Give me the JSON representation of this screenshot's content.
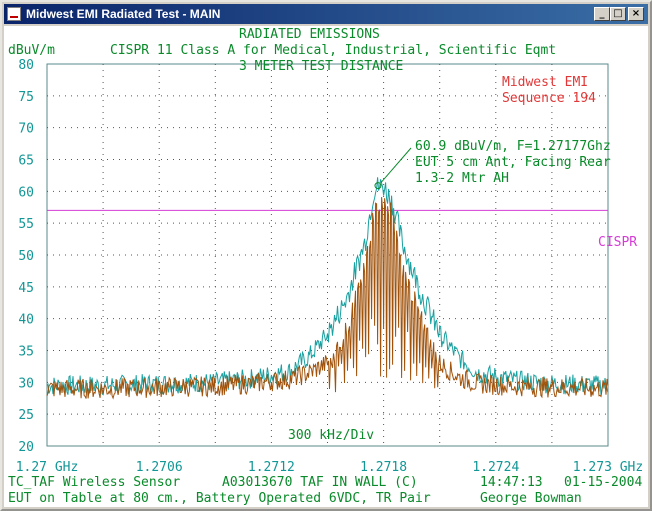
{
  "window": {
    "title": "Midwest EMI Radiated Test - MAIN",
    "buttons": {
      "minimize": "_",
      "maximize": "□",
      "close": "×"
    }
  },
  "header": {
    "line1": "RADIATED EMISSIONS",
    "line2": "CISPR 11 Class A for Medical, Industrial, Scientific Eqmt",
    "line3": "3 METER TEST DISTANCE"
  },
  "company": {
    "name": "Midwest EMI",
    "sequence": "Sequence 194"
  },
  "annotation": {
    "line1": "60.9 dBuV/m, F=1.27177Ghz",
    "line2": "EUT 5 cm Ant, Facing Rear",
    "line3": "1.3-2 Mtr AH"
  },
  "scale_label": "300 kHz/Div",
  "limit_label": "CISPR",
  "footer": {
    "sensor": "TC_TAF Wireless Sensor",
    "test_id": "A03013670 TAF IN WALL (C)",
    "time": "14:47:13",
    "date": "01-15-2004",
    "setup": "EUT on Table at 80 cm., Battery Operated 6VDC, TR Pair",
    "operator": "George Bowman"
  },
  "colors": {
    "title_bar": "#0a246a",
    "text_green": "#0a8a2a",
    "axis_teal": "#139696",
    "company_red": "#e03838",
    "limit_magenta": "#d43cd4",
    "trace_brown": "#a0520a",
    "trace_cyan": "#1aa0a0"
  },
  "chart_data": {
    "type": "line",
    "title": "RADIATED EMISSIONS",
    "ylabel": "dBuV/m",
    "ylim": [
      20,
      80
    ],
    "y_ticks": [
      "20",
      "25",
      "30",
      "35",
      "40",
      "45",
      "50",
      "55",
      "60",
      "65",
      "70",
      "75",
      "80"
    ],
    "xlim": [
      1.27,
      1.273
    ],
    "x_tick_labels": [
      "1.27 GHz",
      "1.2706",
      "1.2712",
      "1.2718",
      "1.2724",
      "1.273 GHz"
    ],
    "x_unit": "GHz",
    "grid": true,
    "limit_line": {
      "name": "CISPR",
      "value": 57
    },
    "marker": {
      "x": 1.27177,
      "y": 60.9
    },
    "series": [
      {
        "color": "#1aa0a0",
        "x": [
          1.27,
          1.2703,
          1.2706,
          1.2709,
          1.2711,
          1.2713,
          1.2714,
          1.2715,
          1.2716,
          1.2717,
          1.27175,
          1.2718,
          1.27185,
          1.2719,
          1.272,
          1.2721,
          1.2722,
          1.2723,
          1.2725,
          1.2727,
          1.273
        ],
        "y": [
          29.5,
          29.5,
          29.8,
          30.0,
          30.6,
          31.8,
          34.0,
          37.5,
          43.0,
          52.0,
          60.5,
          60.9,
          58.0,
          52.0,
          44.0,
          37.5,
          34.0,
          31.5,
          30.3,
          29.8,
          29.5
        ]
      },
      {
        "color": "#a0520a",
        "x": [
          1.27,
          1.2703,
          1.2706,
          1.2709,
          1.2711,
          1.2713,
          1.2714,
          1.2715,
          1.2716,
          1.2717,
          1.27175,
          1.2718,
          1.27185,
          1.2719,
          1.272,
          1.2721,
          1.2722,
          1.2723,
          1.2725,
          1.2727,
          1.273
        ],
        "y": [
          29.0,
          29.0,
          29.2,
          29.4,
          29.8,
          30.5,
          31.5,
          33.0,
          38.0,
          48.0,
          57.0,
          59.0,
          56.0,
          48.0,
          40.0,
          33.0,
          30.8,
          29.8,
          29.4,
          29.2,
          29.0
        ]
      }
    ]
  }
}
